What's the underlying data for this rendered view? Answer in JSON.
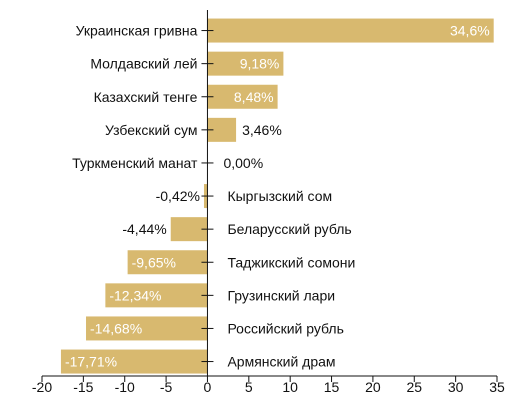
{
  "chart_data": {
    "type": "bar",
    "orientation": "horizontal",
    "categories": [
      "Украинская гривна",
      "Молдавский лей",
      "Казахский тенге",
      "Узбекский сум",
      "Туркменский манат",
      "Кыргызский сом",
      "Беларусский рубль",
      "Таджикский сомони",
      "Грузинский лари",
      "Российский рубль",
      "Армянский драм"
    ],
    "values": [
      34.6,
      9.18,
      8.48,
      3.46,
      0.0,
      -0.42,
      -4.44,
      -9.65,
      -12.34,
      -14.68,
      -17.71
    ],
    "labels": [
      "34,6%",
      "9,18%",
      "8,48%",
      "3,46%",
      "0,00%",
      "-0,42%",
      "-4,44%",
      "-9,65%",
      "-12,34%",
      "-14,68%",
      "-17,71%"
    ],
    "xlim": [
      -20,
      35
    ],
    "xticks": [
      -20,
      -15,
      -10,
      -5,
      0,
      5,
      10,
      15,
      20,
      25,
      30,
      35
    ],
    "grid": false,
    "bar_color": "#d8b96f",
    "label_color_inside": "#ffffff",
    "label_color_outside": "#111111"
  }
}
